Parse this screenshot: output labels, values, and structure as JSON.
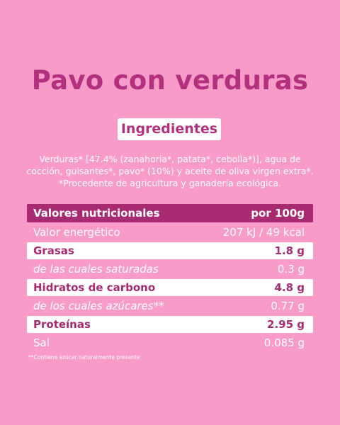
{
  "header": {
    "title": "Pavo con verduras"
  },
  "ingredients": {
    "heading": "Ingredientes",
    "lines": [
      "Verduras* [47.4% (zanahoria*, patata*, cebolla*)], agua de",
      "cocción, guisantes*, pavo* (10%) y aceite de oliva virgen extra*.",
      "*Procedente de agricultura y ganadería ecológica."
    ]
  },
  "table": {
    "header": [
      "Valores nutricionales",
      "por 100g"
    ],
    "rows": [
      [
        "Valor energético",
        "207 kJ / 49 kcal"
      ],
      [
        "Grasas",
        "1.8 g"
      ],
      [
        "de las cuales saturadas",
        "0.3 g"
      ],
      [
        "Hidratos de carbono",
        "4.8 g"
      ],
      [
        "de los cuales azúcares**",
        "0.77 g"
      ],
      [
        "Proteínas",
        "2.95 g"
      ],
      [
        "Sal",
        "0.085 g"
      ]
    ]
  },
  "footnote": "**Contiene azúcar naturalmente presente"
}
